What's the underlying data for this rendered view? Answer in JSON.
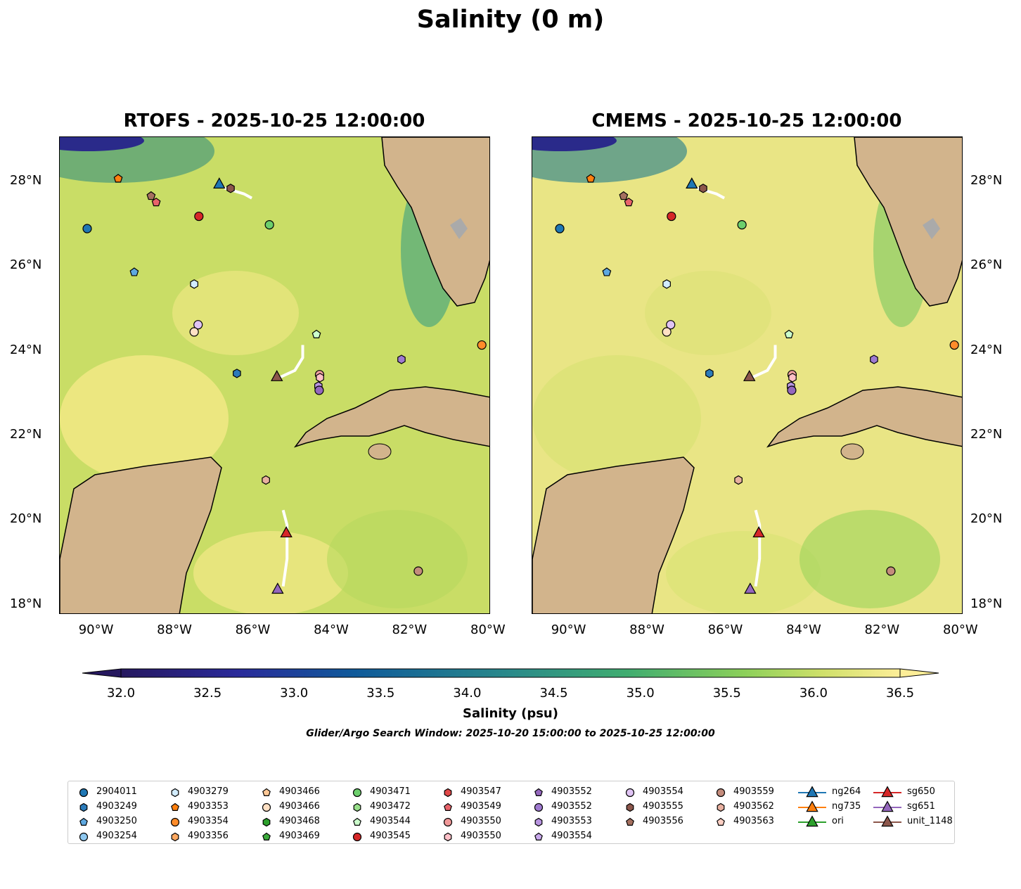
{
  "title": "Salinity (0 m)",
  "panels": [
    {
      "title": "RTOFS - 2025-10-25 12:00:00"
    },
    {
      "title": "CMEMS - 2025-10-25 12:00:00"
    }
  ],
  "chart_data": {
    "type": "map",
    "title": "Salinity (0 m)",
    "lon_range": [
      -91,
      -80
    ],
    "lat_range": [
      17.78,
      29.06
    ],
    "lon_ticks": [
      "90°W",
      "88°W",
      "86°W",
      "84°W",
      "82°W",
      "80°W"
    ],
    "lon_tick_values": [
      -90,
      -88,
      -86,
      -84,
      -82,
      -80
    ],
    "lat_ticks": [
      "28°N",
      "26°N",
      "24°N",
      "22°N",
      "20°N",
      "18°N"
    ],
    "lat_tick_values": [
      28,
      26,
      24,
      22,
      20,
      18
    ],
    "colorbar": {
      "label": "Salinity (psu)",
      "range": [
        32.0,
        36.5
      ],
      "ticks": [
        "32.0",
        "32.5",
        "33.0",
        "33.5",
        "34.0",
        "34.5",
        "35.0",
        "35.5",
        "36.0",
        "36.5"
      ],
      "extend": "both"
    },
    "search_window": "Glider/Argo Search Window: 2025-10-20 15:00:00 to 2025-10-25 12:00:00",
    "points": [
      {
        "name": "2904011",
        "marker": "circle",
        "color": "#1f77b4",
        "lon": -90.3,
        "lat": 26.9
      },
      {
        "name": "4903353",
        "marker": "pentagon",
        "color": "#ff7f0e",
        "lon": -89.51,
        "lat": 28.08
      },
      {
        "name": "4903556",
        "marker": "pentagon",
        "color": "#a5705f",
        "lon": -88.67,
        "lat": 27.67
      },
      {
        "name": "4903549",
        "marker": "pentagon",
        "color": "#e8636a",
        "lon": -88.54,
        "lat": 27.52
      },
      {
        "name": "4903555",
        "marker": "hexagon",
        "color": "#8c564b",
        "lon": -86.64,
        "lat": 27.85
      },
      {
        "name": "4903545",
        "marker": "circle",
        "color": "#d62728",
        "lon": -87.45,
        "lat": 27.19
      },
      {
        "name": "4903471",
        "marker": "circle",
        "color": "#6ccf6c",
        "lon": -85.65,
        "lat": 26.99
      },
      {
        "name": "4903250",
        "marker": "pentagon",
        "color": "#5ea8e0",
        "lon": -89.1,
        "lat": 25.87
      },
      {
        "name": "4903279",
        "marker": "hexagon",
        "color": "#d2ecff",
        "lon": -87.57,
        "lat": 25.59
      },
      {
        "name": "4903554",
        "marker": "circle",
        "color": "#e0c4f4",
        "lon": -87.47,
        "lat": 24.63
      },
      {
        "name": "4903466",
        "marker": "circle",
        "color": "#ffe0c4",
        "lon": -87.57,
        "lat": 24.46
      },
      {
        "name": "4903544",
        "marker": "pentagon",
        "color": "#ccffcc",
        "lon": -84.45,
        "lat": 24.4
      },
      {
        "name": "4903354",
        "marker": "circle",
        "color": "#ff8c2a",
        "lon": -80.23,
        "lat": 24.15
      },
      {
        "name": "4903552",
        "marker": "hexagon",
        "color": "#9f7ad0",
        "lon": -82.28,
        "lat": 23.81
      },
      {
        "name": "4903249",
        "marker": "hexagon",
        "color": "#2b7bba",
        "lon": -86.48,
        "lat": 23.48
      },
      {
        "name": "4903559",
        "marker": "circle",
        "color": "#f0a0a0",
        "lon": -84.37,
        "lat": 23.45
      },
      {
        "name": "4903550",
        "marker": "hexagon",
        "color": "#ffc0c8",
        "lon": -84.36,
        "lat": 23.38
      },
      {
        "name": "4903553",
        "marker": "hexagon",
        "color": "#b894e0",
        "lon": -84.4,
        "lat": 23.18
      },
      {
        "name": "4903552",
        "marker": "circle",
        "color": "#9467bd",
        "lon": -84.38,
        "lat": 23.08
      },
      {
        "name": "4903562",
        "marker": "hexagon",
        "color": "#e8b0a0",
        "lon": -85.74,
        "lat": 20.96
      },
      {
        "name": "4903559",
        "marker": "circle",
        "color": "#c48c7c",
        "lon": -81.85,
        "lat": 18.81
      },
      {
        "name": "ng264",
        "marker": "triangle",
        "color": "#1f77b4",
        "lon": -86.93,
        "lat": 27.95
      },
      {
        "name": "unit_1148",
        "marker": "triangle",
        "color": "#8c564b",
        "lon": -85.46,
        "lat": 23.4
      },
      {
        "name": "sg650",
        "marker": "triangle",
        "color": "#d62728",
        "lon": -85.22,
        "lat": 19.71
      },
      {
        "name": "sg651",
        "marker": "triangle",
        "color": "#9467bd",
        "lon": -85.44,
        "lat": 18.38
      }
    ],
    "tracks": [
      {
        "name": "ng264",
        "lon": [
          -86.8,
          -86.3,
          -86.1
        ],
        "lat": [
          27.86,
          27.72,
          27.62
        ]
      },
      {
        "name": "unit_1148",
        "lon": [
          -85.4,
          -85.0,
          -84.8,
          -84.8
        ],
        "lat": [
          23.38,
          23.55,
          23.85,
          24.15
        ]
      },
      {
        "name": "sg651",
        "lon": [
          -85.3,
          -85.2,
          -85.2,
          -85.3
        ],
        "lat": [
          20.25,
          19.9,
          19.1,
          18.45
        ]
      }
    ]
  },
  "legend": [
    {
      "label": "2904011",
      "marker": "circle",
      "color": "#1f77b4"
    },
    {
      "label": "4903249",
      "marker": "hexagon",
      "color": "#2b7bba"
    },
    {
      "label": "4903250",
      "marker": "pentagon",
      "color": "#5ea8e0"
    },
    {
      "label": "4903254",
      "marker": "circle",
      "color": "#8ec8f0"
    },
    {
      "label": "4903279",
      "marker": "hexagon",
      "color": "#d2ecff"
    },
    {
      "label": "4903353",
      "marker": "pentagon",
      "color": "#ff7f0e"
    },
    {
      "label": "4903354",
      "marker": "circle",
      "color": "#ff8c2a"
    },
    {
      "label": "4903356",
      "marker": "hexagon",
      "color": "#ffa860"
    },
    {
      "label": "4903466",
      "marker": "pentagon",
      "color": "#ffc896"
    },
    {
      "label": "4903466",
      "marker": "circle",
      "color": "#ffe0c4"
    },
    {
      "label": "4903468",
      "marker": "hexagon",
      "color": "#2ca02c"
    },
    {
      "label": "4903469",
      "marker": "pentagon",
      "color": "#3caa3c"
    },
    {
      "label": "4903471",
      "marker": "circle",
      "color": "#6ccf6c"
    },
    {
      "label": "4903472",
      "marker": "hexagon",
      "color": "#98df8a"
    },
    {
      "label": "4903544",
      "marker": "pentagon",
      "color": "#ccffcc"
    },
    {
      "label": "4903545",
      "marker": "circle",
      "color": "#d62728"
    },
    {
      "label": "4903547",
      "marker": "hexagon",
      "color": "#e04848"
    },
    {
      "label": "4903549",
      "marker": "pentagon",
      "color": "#e8636a"
    },
    {
      "label": "4903550",
      "marker": "circle",
      "color": "#f09898"
    },
    {
      "label": "4903550",
      "marker": "hexagon",
      "color": "#ffc0c8"
    },
    {
      "label": "4903552",
      "marker": "pentagon",
      "color": "#9467bd"
    },
    {
      "label": "4903552",
      "marker": "circle",
      "color": "#9f7ad0"
    },
    {
      "label": "4903553",
      "marker": "hexagon",
      "color": "#b894e0"
    },
    {
      "label": "4903554",
      "marker": "pentagon",
      "color": "#c8a8ec"
    },
    {
      "label": "4903554",
      "marker": "circle",
      "color": "#e0c4f4"
    },
    {
      "label": "4903555",
      "marker": "hexagon",
      "color": "#8c564b"
    },
    {
      "label": "4903556",
      "marker": "pentagon",
      "color": "#a5705f"
    },
    {
      "label": "4903559",
      "marker": "circle",
      "color": "#c48c7c"
    },
    {
      "label": "4903562",
      "marker": "hexagon",
      "color": "#e8b0a0"
    },
    {
      "label": "4903563",
      "marker": "pentagon",
      "color": "#ffd0c4"
    },
    {
      "label": "ng264",
      "marker": "triangle-line",
      "color": "#1f77b4"
    },
    {
      "label": "ng735",
      "marker": "triangle-line",
      "color": "#ff7f0e"
    },
    {
      "label": "ori",
      "marker": "triangle-line",
      "color": "#2ca02c"
    },
    {
      "label": "sg650",
      "marker": "triangle-line",
      "color": "#d62728"
    },
    {
      "label": "sg651",
      "marker": "triangle-line",
      "color": "#9467bd"
    },
    {
      "label": "unit_1148",
      "marker": "triangle-line",
      "color": "#8c564b"
    }
  ],
  "colors": {
    "land": "#d2b48c",
    "ocean_rtofs": "#c9dd66",
    "ocean_cmems": "#e9e585",
    "track": "#ffffff"
  }
}
